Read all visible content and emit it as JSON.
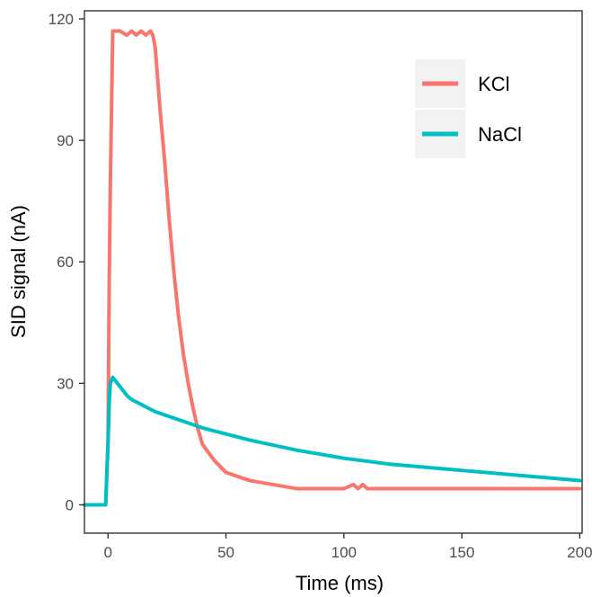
{
  "chart_data": {
    "type": "line",
    "title": "",
    "xlabel": "Time (ms)",
    "ylabel": "SID signal (nA)",
    "xlim": [
      -10,
      201
    ],
    "ylim": [
      -7,
      122
    ],
    "xticks": [
      0,
      50,
      100,
      150,
      200
    ],
    "yticks": [
      0,
      30,
      60,
      90,
      120
    ],
    "grid": false,
    "legend_position": "top-right",
    "series": [
      {
        "name": "KCl",
        "color": "#F8766D",
        "x": [
          -1,
          0,
          0.5,
          1,
          2,
          3,
          5,
          8,
          10,
          12,
          14,
          16,
          18,
          19,
          20,
          22,
          24,
          26,
          28,
          30,
          32,
          34,
          36,
          38,
          40,
          45,
          50,
          55,
          60,
          70,
          80,
          90,
          100,
          104,
          106,
          108,
          110,
          120,
          150,
          200
        ],
        "y": [
          0,
          16,
          55,
          80,
          117,
          117,
          117,
          116,
          117,
          116,
          117,
          116,
          117,
          116,
          113,
          98,
          85,
          70,
          57,
          46,
          37,
          30,
          24,
          19,
          15,
          11,
          8,
          7,
          6,
          5,
          4,
          4,
          4,
          5,
          4,
          5,
          4,
          4,
          4,
          4
        ]
      },
      {
        "name": "NaCl",
        "color": "#00BFC4",
        "x": [
          -10,
          -1,
          0,
          0.5,
          1,
          2,
          4,
          6,
          8,
          10,
          15,
          20,
          30,
          40,
          50,
          60,
          80,
          100,
          120,
          150,
          180,
          200
        ],
        "y": [
          0,
          0,
          15,
          25,
          30,
          31.5,
          30,
          28.5,
          27,
          26,
          24.5,
          23,
          21,
          19,
          17.5,
          16,
          13.5,
          11.5,
          10,
          8.5,
          7,
          6
        ]
      }
    ]
  }
}
